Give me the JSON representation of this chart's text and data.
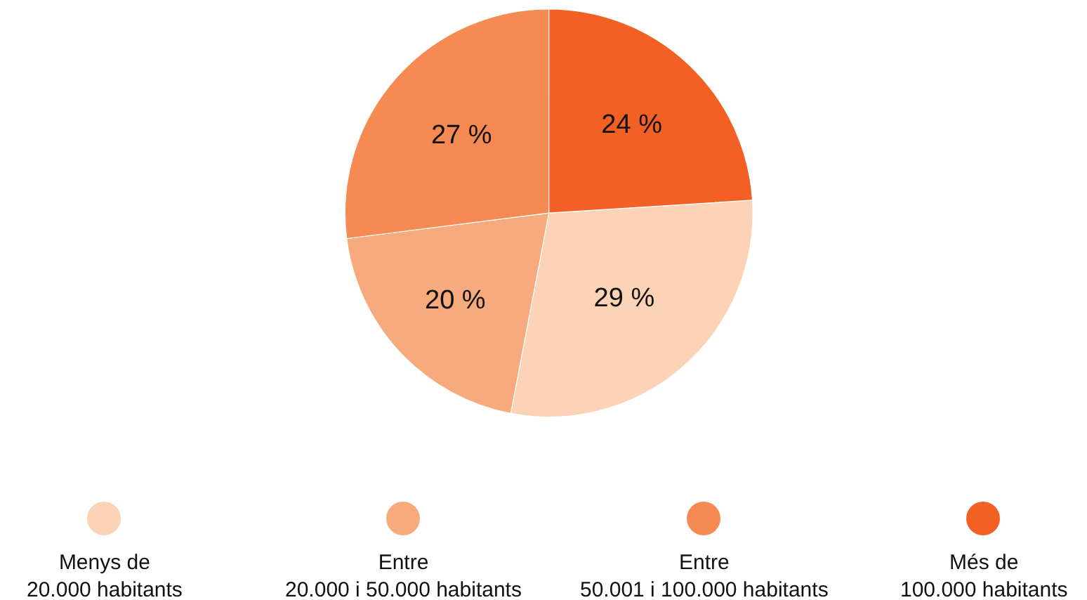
{
  "chart_data": {
    "type": "pie",
    "categories": [
      "Menys de\n20.000 habitants",
      "Entre\n20.000 i 50.000 habitants",
      "Entre\n50.001 i 100.000 habitants",
      "Més de\n100.000 habitants"
    ],
    "values": [
      29,
      20,
      27,
      24
    ],
    "colors": [
      "#fcd3b6",
      "#f7aa7d",
      "#f58a52",
      "#f26024"
    ],
    "value_labels": [
      "29 %",
      "20 %",
      "27 %",
      "24 %"
    ],
    "legend": "bottom"
  }
}
